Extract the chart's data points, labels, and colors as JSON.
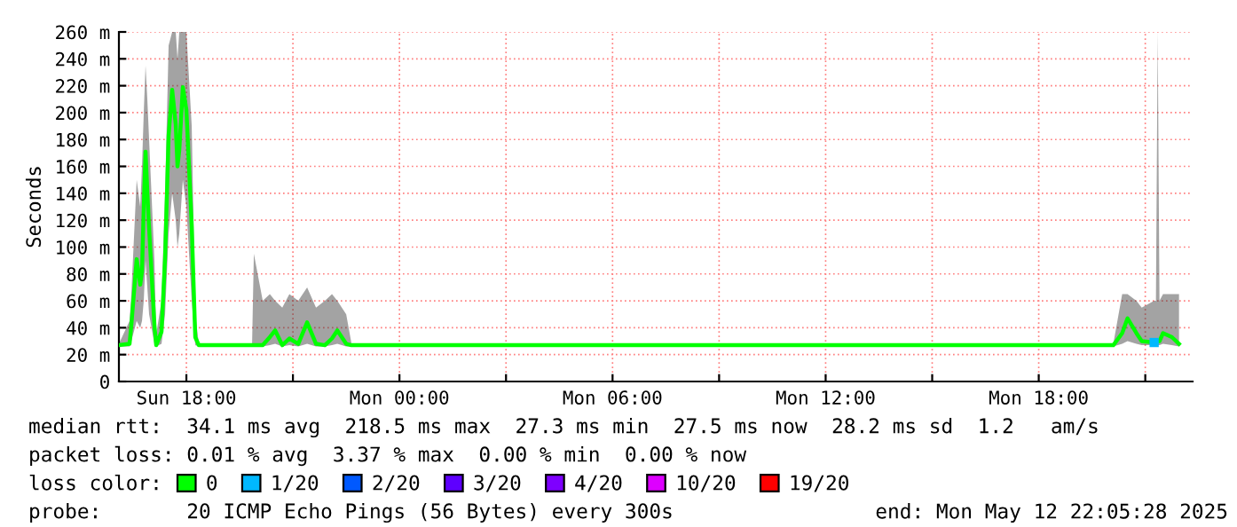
{
  "chart_data": {
    "type": "line",
    "ylabel": "Seconds",
    "xlim": [
      "2025-05-11T16:06",
      "2025-05-12T22:20"
    ],
    "xticks": [
      {
        "value": "2025-05-11T18:00",
        "label": "Sun 18:00"
      },
      {
        "value": "2025-05-11T21:00",
        "label": null
      },
      {
        "value": "2025-05-12T00:00",
        "label": "Mon 00:00"
      },
      {
        "value": "2025-05-12T03:00",
        "label": null
      },
      {
        "value": "2025-05-12T06:00",
        "label": "Mon 06:00"
      },
      {
        "value": "2025-05-12T09:00",
        "label": null
      },
      {
        "value": "2025-05-12T12:00",
        "label": "Mon 12:00"
      },
      {
        "value": "2025-05-12T15:00",
        "label": null
      },
      {
        "value": "2025-05-12T18:00",
        "label": "Mon 18:00"
      },
      {
        "value": "2025-05-12T21:00",
        "label": null
      }
    ],
    "ylim": [
      0,
      260
    ],
    "yticks": [
      0,
      {
        "value": 20,
        "label": "20 m"
      },
      {
        "value": 40,
        "label": "40 m"
      },
      {
        "value": 60,
        "label": "60 m"
      },
      {
        "value": 80,
        "label": "80 m"
      },
      {
        "value": 100,
        "label": "100 m"
      },
      {
        "value": 120,
        "label": "120 m"
      },
      {
        "value": 140,
        "label": "140 m"
      },
      {
        "value": 160,
        "label": "160 m"
      },
      {
        "value": 180,
        "label": "180 m"
      },
      {
        "value": 200,
        "label": "200 m"
      },
      {
        "value": 220,
        "label": "220 m"
      },
      {
        "value": 240,
        "label": "240 m"
      },
      {
        "value": 260,
        "label": "260 m"
      }
    ],
    "grid": true,
    "legend": "bottom",
    "series": [
      {
        "name": "0",
        "color": "#00ff00",
        "x": [
          "2025-05-11T16:06",
          "2025-05-11T16:24",
          "2025-05-11T16:27",
          "2025-05-11T16:36",
          "2025-05-11T16:42",
          "2025-05-11T16:45",
          "2025-05-11T16:48",
          "2025-05-11T16:51",
          "2025-05-11T16:54",
          "2025-05-11T16:57",
          "2025-05-11T17:06",
          "2025-05-11T17:09",
          "2025-05-11T17:18",
          "2025-05-11T17:24",
          "2025-05-11T17:30",
          "2025-05-11T17:36",
          "2025-05-11T17:42",
          "2025-05-11T17:45",
          "2025-05-11T17:48",
          "2025-05-11T17:54",
          "2025-05-11T18:00",
          "2025-05-11T18:09",
          "2025-05-11T18:15",
          "2025-05-11T18:21",
          "2025-05-11T19:51",
          "2025-05-11T19:54",
          "2025-05-11T20:09",
          "2025-05-11T20:21",
          "2025-05-11T20:30",
          "2025-05-11T20:42",
          "2025-05-11T20:54",
          "2025-05-11T21:09",
          "2025-05-11T21:24",
          "2025-05-11T21:39",
          "2025-05-11T21:54",
          "2025-05-11T22:06",
          "2025-05-11T22:15",
          "2025-05-11T22:30",
          "2025-05-11T22:39",
          "2025-05-12T20:06",
          "2025-05-12T20:21",
          "2025-05-12T20:30",
          "2025-05-12T20:45",
          "2025-05-12T20:54",
          "2025-05-12T21:15",
          "2025-05-12T21:18",
          "2025-05-12T21:21",
          "2025-05-12T21:24",
          "2025-05-12T21:30",
          "2025-05-12T21:45",
          "2025-05-12T21:57"
        ],
        "values": [
          27,
          28,
          42,
          91,
          72,
          82,
          130,
          171,
          141,
          114,
          42,
          27,
          37,
          92,
          183,
          217,
          191,
          160,
          172,
          219,
          202,
          116,
          33,
          27,
          27,
          27,
          27,
          33,
          38,
          27,
          32,
          28,
          44,
          28,
          27,
          32,
          38,
          28,
          27,
          27,
          36,
          47,
          36,
          30,
          29,
          30,
          30,
          30,
          36,
          33,
          28
        ],
        "lower": [
          26,
          26,
          30,
          45,
          40,
          45,
          60,
          90,
          70,
          50,
          28,
          26,
          28,
          50,
          110,
          140,
          120,
          100,
          110,
          150,
          130,
          60,
          27,
          26,
          26,
          26,
          26,
          27,
          28,
          26,
          27,
          26,
          28,
          26,
          26,
          27,
          28,
          26,
          26,
          26,
          28,
          30,
          28,
          27,
          27,
          27,
          27,
          27,
          28,
          27,
          26
        ],
        "upper": [
          28,
          45,
          65,
          150,
          130,
          160,
          200,
          235,
          210,
          180,
          90,
          35,
          60,
          140,
          250,
          260,
          260,
          240,
          260,
          260,
          260,
          190,
          50,
          28,
          28,
          95,
          60,
          65,
          60,
          55,
          65,
          60,
          70,
          55,
          60,
          65,
          60,
          50,
          28,
          28,
          65,
          65,
          60,
          55,
          60,
          60,
          260,
          60,
          65,
          65,
          65
        ]
      },
      {
        "name": "1/20",
        "color": "#00b8ff",
        "type": "scatter",
        "x": [
          "2025-05-12T21:15"
        ],
        "values": [
          29
        ]
      },
      {
        "name": "2/20",
        "color": "#0059ff",
        "type": "scatter"
      },
      {
        "name": "3/20",
        "color": "#5e00ff",
        "type": "scatter"
      },
      {
        "name": "4/20",
        "color": "#7e00ff",
        "type": "scatter"
      },
      {
        "name": "10/20",
        "color": "#dd00ff",
        "type": "scatter"
      },
      {
        "name": "19/20",
        "color": "#ff0000",
        "type": "scatter"
      }
    ],
    "annotations": [
      "median rtt:  34.1 ms avg  218.5 ms max  27.3 ms min  27.5 ms now  28.2 ms sd  1.2   am/s",
      "packet loss: 0.01 % avg  3.37 % max  0.00 % min  0.00 % now",
      "loss color:",
      "probe:       20 ICMP Echo Pings (56 Bytes) every 300s",
      "end: Mon May 12 22:05:28 2025"
    ]
  }
}
